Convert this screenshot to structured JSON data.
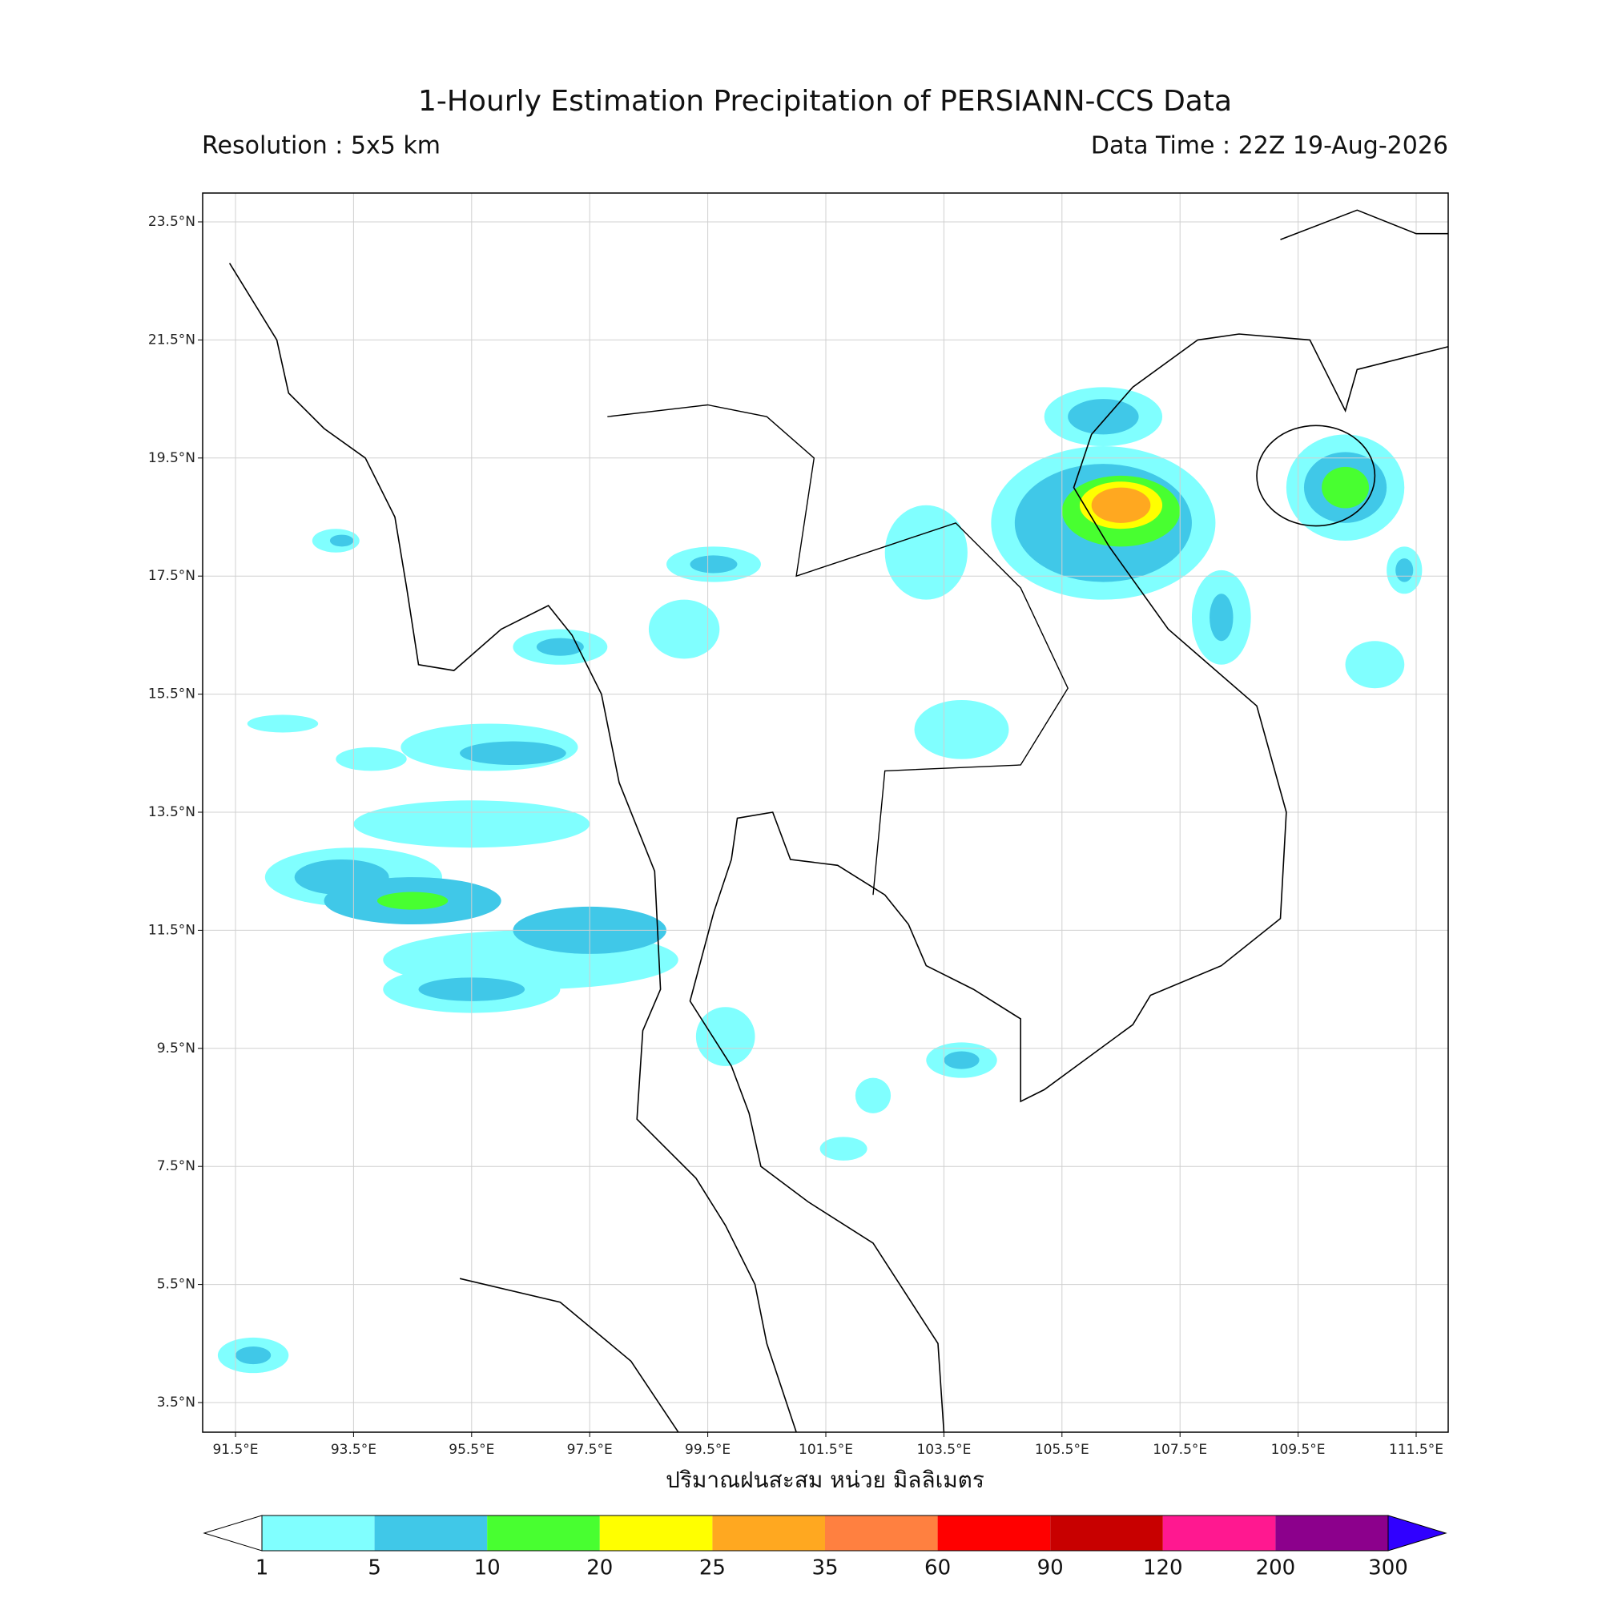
{
  "header": {
    "title": "1-Hourly Estimation Precipitation of PERSIANN-CCS Data",
    "resolution": "Resolution : 5x5 km",
    "data_time": "Data Time : 22Z 19-Aug-2026"
  },
  "map": {
    "lon_ticks": [
      {
        "value": 91.5,
        "label": "91.5°E"
      },
      {
        "value": 93.5,
        "label": "93.5°E"
      },
      {
        "value": 95.5,
        "label": "95.5°E"
      },
      {
        "value": 97.5,
        "label": "97.5°E"
      },
      {
        "value": 99.5,
        "label": "99.5°E"
      },
      {
        "value": 101.5,
        "label": "101.5°E"
      },
      {
        "value": 103.5,
        "label": "103.5°E"
      },
      {
        "value": 105.5,
        "label": "105.5°E"
      },
      {
        "value": 107.5,
        "label": "107.5°E"
      },
      {
        "value": 109.5,
        "label": "109.5°E"
      },
      {
        "value": 111.5,
        "label": "111.5°E"
      }
    ],
    "lat_ticks": [
      {
        "value": 23.5,
        "label": "23.5°N"
      },
      {
        "value": 21.5,
        "label": "21.5°N"
      },
      {
        "value": 19.5,
        "label": "19.5°N"
      },
      {
        "value": 17.5,
        "label": "17.5°N"
      },
      {
        "value": 15.5,
        "label": "15.5°N"
      },
      {
        "value": 13.5,
        "label": "13.5°N"
      },
      {
        "value": 11.5,
        "label": "11.5°N"
      },
      {
        "value": 9.5,
        "label": "9.5°N"
      },
      {
        "value": 7.5,
        "label": "7.5°N"
      },
      {
        "value": 5.5,
        "label": "5.5°N"
      },
      {
        "value": 3.5,
        "label": "3.5°N"
      }
    ]
  },
  "colorbar": {
    "label": "ปริมาณฝนสะสม หน่วย มิลลิเมตร",
    "levels": [
      1,
      5,
      10,
      20,
      25,
      35,
      60,
      90,
      120,
      200,
      300
    ],
    "colors": [
      "#80ffff",
      "#40c8e8",
      "#48ff30",
      "#ffff00",
      "#ffa820",
      "#ff8040",
      "#ff0000",
      "#c80000",
      "#ff1890",
      "#8c008c"
    ],
    "under_color": "#ffffff",
    "over_color": "#3000ff"
  }
}
